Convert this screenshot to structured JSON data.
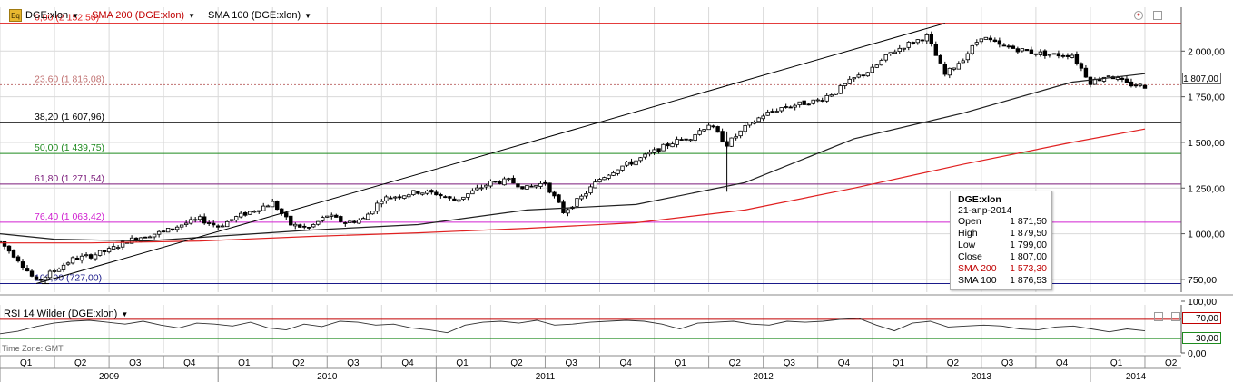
{
  "legend": {
    "instrument_icon": "Eq",
    "instrument": "DGE:xlon",
    "sma200": "SMA 200 (DGE:xlon)",
    "sma100": "SMA 100 (DGE:xlon)",
    "caret": "▼"
  },
  "rsi_legend": {
    "label": "RSI 14 Wilder (DGE:xlon)",
    "caret": "▼"
  },
  "timezone": "Time Zone: GMT",
  "tooltip": {
    "title": "DGE:xlon",
    "date": "21-апр-2014",
    "rows": [
      {
        "k": "Open",
        "v": "1 871,50"
      },
      {
        "k": "High",
        "v": "1 879,50"
      },
      {
        "k": "Low",
        "v": "1 799,00"
      },
      {
        "k": "Close",
        "v": "1 807,00"
      },
      {
        "k": "SMA 200",
        "v": "1 573,30",
        "red": true
      },
      {
        "k": "SMA 100",
        "v": "1 876,53"
      }
    ]
  },
  "last_price_tag": "1 807,00",
  "rsi_tags": [
    "70,00",
    "30,00"
  ],
  "colors": {
    "candle": "#000000",
    "sma200": "#e02020",
    "sma100": "#202020",
    "fib0": "#e02020",
    "fib236": "#c07070",
    "fib382": "#000000",
    "fib50": "#1f8a1f",
    "fib618": "#7a1a7a",
    "fib764": "#d020d0",
    "fib100": "#1a1a8a",
    "grid": "#d9d9d9",
    "rsi_line": "#303030",
    "rsi70": "#c00000",
    "rsi30": "#1e8b1e"
  },
  "chart_data": [
    {
      "type": "candlestick",
      "title": "",
      "series_name": "DGE:xlon",
      "x_start": "2009-01",
      "x_end": "2014-06",
      "y_axis_ticks": [
        "2 000,00",
        "1 750,00",
        "1 500,00",
        "1 250,00",
        "1 000,00",
        "750,00"
      ],
      "y_tick_values": [
        2000,
        1750,
        1500,
        1250,
        1000,
        750
      ],
      "ylim": [
        680,
        2240
      ],
      "x_axis_quarters": [
        {
          "year": "2009",
          "quarters": [
            "Q1",
            "Q2",
            "Q3",
            "Q4"
          ]
        },
        {
          "year": "2010",
          "quarters": [
            "Q1",
            "Q2",
            "Q3",
            "Q4"
          ]
        },
        {
          "year": "2011",
          "quarters": [
            "Q1",
            "Q2",
            "Q3",
            "Q4"
          ]
        },
        {
          "year": "2012",
          "quarters": [
            "Q1",
            "Q2",
            "Q3",
            "Q4"
          ]
        },
        {
          "year": "2013",
          "quarters": [
            "Q1",
            "Q2",
            "Q3",
            "Q4"
          ]
        },
        {
          "year": "2014",
          "quarters": [
            "Q1",
            "Q2"
          ]
        }
      ],
      "price_path": [
        [
          "2009-01",
          955
        ],
        [
          "2009-02",
          860
        ],
        [
          "2009-03",
          735
        ],
        [
          "2009-04",
          800
        ],
        [
          "2009-05",
          860
        ],
        [
          "2009-06",
          880
        ],
        [
          "2009-07",
          910
        ],
        [
          "2009-08",
          960
        ],
        [
          "2009-09",
          990
        ],
        [
          "2009-10",
          1010
        ],
        [
          "2009-11",
          1050
        ],
        [
          "2009-12",
          1080
        ],
        [
          "2010-01",
          1040
        ],
        [
          "2010-02",
          1090
        ],
        [
          "2010-03",
          1130
        ],
        [
          "2010-04",
          1170
        ],
        [
          "2010-05",
          1050
        ],
        [
          "2010-06",
          1030
        ],
        [
          "2010-07",
          1100
        ],
        [
          "2010-08",
          1060
        ],
        [
          "2010-09",
          1080
        ],
        [
          "2010-10",
          1190
        ],
        [
          "2010-11",
          1210
        ],
        [
          "2010-12",
          1230
        ],
        [
          "2011-01",
          1220
        ],
        [
          "2011-02",
          1180
        ],
        [
          "2011-03",
          1230
        ],
        [
          "2011-04",
          1280
        ],
        [
          "2011-05",
          1290
        ],
        [
          "2011-06",
          1250
        ],
        [
          "2011-07",
          1280
        ],
        [
          "2011-08",
          1120
        ],
        [
          "2011-09",
          1200
        ],
        [
          "2011-10",
          1300
        ],
        [
          "2011-11",
          1360
        ],
        [
          "2011-12",
          1400
        ],
        [
          "2012-01",
          1450
        ],
        [
          "2012-02",
          1500
        ],
        [
          "2012-03",
          1530
        ],
        [
          "2012-04",
          1600
        ],
        [
          "2012-05",
          1490
        ],
        [
          "2012-06",
          1580
        ],
        [
          "2012-07",
          1650
        ],
        [
          "2012-08",
          1690
        ],
        [
          "2012-09",
          1710
        ],
        [
          "2012-10",
          1730
        ],
        [
          "2012-11",
          1780
        ],
        [
          "2012-12",
          1850
        ],
        [
          "2013-01",
          1900
        ],
        [
          "2013-02",
          1990
        ],
        [
          "2013-03",
          2040
        ],
        [
          "2013-04",
          2080
        ],
        [
          "2013-05",
          1870
        ],
        [
          "2013-06",
          1960
        ],
        [
          "2013-07",
          2080
        ],
        [
          "2013-08",
          2030
        ],
        [
          "2013-09",
          2010
        ],
        [
          "2013-10",
          1990
        ],
        [
          "2013-11",
          1980
        ],
        [
          "2013-12",
          1980
        ],
        [
          "2014-01",
          1830
        ],
        [
          "2014-02",
          1870
        ],
        [
          "2014-03",
          1820
        ],
        [
          "2014-04",
          1807
        ]
      ],
      "sma200_path": [
        [
          "2009-01",
          950
        ],
        [
          "2009-06",
          950
        ],
        [
          "2009-12",
          960
        ],
        [
          "2010-06",
          985
        ],
        [
          "2010-12",
          1005
        ],
        [
          "2011-06",
          1030
        ],
        [
          "2011-12",
          1060
        ],
        [
          "2012-06",
          1130
        ],
        [
          "2012-12",
          1250
        ],
        [
          "2013-06",
          1380
        ],
        [
          "2013-12",
          1500
        ],
        [
          "2014-04",
          1573.3
        ]
      ],
      "sma100_path": [
        [
          "2009-01",
          1000
        ],
        [
          "2009-04",
          970
        ],
        [
          "2009-09",
          960
        ],
        [
          "2009-12",
          980
        ],
        [
          "2010-06",
          1020
        ],
        [
          "2010-12",
          1050
        ],
        [
          "2011-06",
          1130
        ],
        [
          "2011-12",
          1160
        ],
        [
          "2012-06",
          1280
        ],
        [
          "2012-12",
          1520
        ],
        [
          "2013-06",
          1660
        ],
        [
          "2013-12",
          1830
        ],
        [
          "2014-04",
          1876.53
        ]
      ],
      "trendline": {
        "from": [
          "2009-03",
          727
        ],
        "to": [
          "2013-05",
          2152.5
        ]
      },
      "fibonacci": [
        {
          "label": "0,00 (2 152,50)",
          "value": 2152.5,
          "color_key": "fib0"
        },
        {
          "label": "23,60 (1 816,08)",
          "value": 1816.08,
          "color_key": "fib236"
        },
        {
          "label": "38,20 (1 607,96)",
          "value": 1607.96,
          "color_key": "fib382"
        },
        {
          "label": "50,00 (1 439,75)",
          "value": 1439.75,
          "color_key": "fib50"
        },
        {
          "label": "61,80 (1 271,54)",
          "value": 1271.54,
          "color_key": "fib618"
        },
        {
          "label": "76,40 (1 063,42)",
          "value": 1063.42,
          "color_key": "fib764"
        },
        {
          "label": "100,00 (727,00)",
          "value": 727,
          "color_key": "fib100"
        }
      ]
    },
    {
      "type": "line",
      "title": "",
      "series_name": "RSI 14 Wilder (DGE:xlon)",
      "y_axis_ticks": [
        "100,00",
        "0,00"
      ],
      "y_tick_values": [
        100,
        0
      ],
      "ylim": [
        0,
        100
      ],
      "levels": [
        70,
        30
      ],
      "values": [
        40,
        45,
        55,
        62,
        66,
        68,
        64,
        60,
        66,
        58,
        52,
        62,
        60,
        56,
        64,
        52,
        48,
        60,
        55,
        66,
        64,
        58,
        60,
        52,
        48,
        42,
        58,
        64,
        66,
        62,
        68,
        58,
        60,
        64,
        66,
        68,
        66,
        60,
        50,
        62,
        64,
        66,
        60,
        58,
        66,
        64,
        66,
        70,
        72,
        58,
        46,
        62,
        66,
        54,
        56,
        58,
        56,
        50,
        48,
        54,
        56,
        50,
        44,
        50,
        46
      ]
    }
  ]
}
